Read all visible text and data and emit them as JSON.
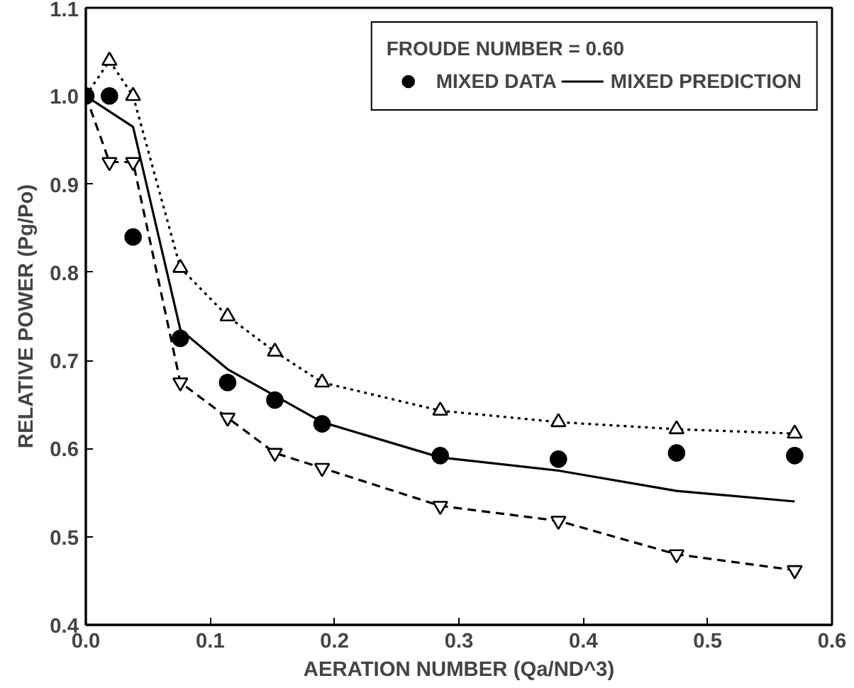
{
  "chart_data": {
    "type": "line",
    "xlabel": "AERATION NUMBER (Qa/ND^3)",
    "ylabel": "RELATIVE POWER (Pg/Po)",
    "legend_title": "FROUDE NUMBER = 0.60",
    "xlim": [
      0,
      0.6
    ],
    "ylim": [
      0.4,
      1.1
    ],
    "xticks": [
      {
        "value": 0,
        "label": "0.0"
      },
      0.1,
      0.2,
      0.3,
      0.4,
      0.5,
      0.6
    ],
    "yticks": [
      0.4,
      0.5,
      0.6,
      0.7,
      0.8,
      0.9,
      {
        "value": 1,
        "label": "1.0"
      },
      1.1
    ],
    "grid": false,
    "legend": "top right",
    "x": [
      0,
      0.019,
      0.038,
      0.076,
      0.114,
      0.152,
      0.19,
      0.285,
      0.38,
      0.475,
      0.57
    ],
    "series": [
      {
        "color": "#000000",
        "marker": "triangle_down",
        "line_style": "dashed",
        "values": [
          1.0,
          0.925,
          0.925,
          0.675,
          0.635,
          0.595,
          0.578,
          0.535,
          0.518,
          0.48,
          0.462
        ]
      },
      {
        "color": "#000000",
        "marker": "triangle",
        "line_style": "dotted",
        "values": [
          1.0,
          1.04,
          1.0,
          0.805,
          0.75,
          0.71,
          0.675,
          0.643,
          0.63,
          0.622,
          0.617
        ]
      },
      {
        "type": "scatter",
        "name": "MIXED DATA",
        "color": "#000000",
        "marker": "circle",
        "values": [
          1.0,
          1.0,
          0.84,
          0.725,
          0.675,
          0.655,
          0.628,
          0.592,
          0.588,
          0.595,
          0.592
        ]
      },
      {
        "name": "MIXED PREDICTION",
        "color": "#000000",
        "marker": "none",
        "line_style": "solid",
        "x": [
          0,
          0.038,
          0.076,
          0.114,
          0.152,
          0.19,
          0.285,
          0.38,
          0.475,
          0.57
        ],
        "values": [
          1.0,
          0.965,
          0.735,
          0.69,
          0.66,
          0.63,
          0.59,
          0.575,
          0.552,
          0.54
        ]
      }
    ]
  }
}
